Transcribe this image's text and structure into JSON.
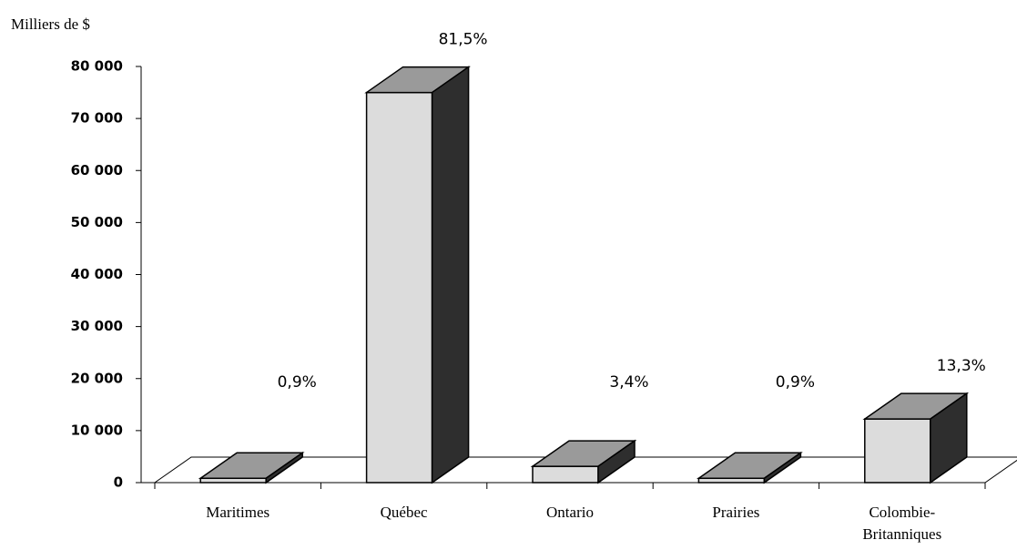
{
  "chart_data": {
    "type": "bar3d",
    "y_label": "Milliers de $",
    "categories": [
      "Maritimes",
      "Québec",
      "Ontario",
      "Prairies",
      "Colombie-Britanniques"
    ],
    "values": [
      830,
      75000,
      3130,
      830,
      12240
    ],
    "annotations": [
      "0,9%",
      "81,5%",
      "3,4%",
      "0,9%",
      "13,3%"
    ],
    "colors": {
      "front": "#dcdcdc",
      "top": "#9a9a9a",
      "side": "#2e2e2e"
    },
    "ylim": [
      0,
      80000
    ],
    "yticks": [
      0,
      {
        "value": 10000,
        "label": "10 000"
      },
      {
        "value": 20000,
        "label": "20 000"
      },
      {
        "value": 30000,
        "label": "30 000"
      },
      {
        "value": 40000,
        "label": "40 000"
      },
      {
        "value": 50000,
        "label": "50 000"
      },
      {
        "value": 60000,
        "label": "60 000"
      },
      {
        "value": 70000,
        "label": "70 000"
      },
      {
        "value": 80000,
        "label": "80 000"
      }
    ]
  }
}
